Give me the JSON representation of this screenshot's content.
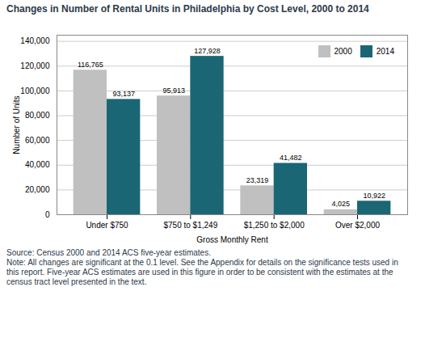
{
  "chart_data": {
    "type": "bar",
    "title": "Changes in Number of Rental Units in Philadelphia by Cost Level, 2000 to 2014",
    "categories": [
      "Under $750",
      "$750 to $1,249",
      "$1,250 to $2,000",
      "Over $2,000"
    ],
    "series": [
      {
        "name": "2000",
        "color": "#c0c0c0",
        "values": [
          116765,
          95913,
          23319,
          4025
        ],
        "value_labels": [
          "116,765",
          "95,913",
          "23,319",
          "4,025"
        ]
      },
      {
        "name": "2014",
        "color": "#1a6674",
        "values": [
          93137,
          127928,
          41482,
          10922
        ],
        "value_labels": [
          "93,137",
          "127,928",
          "41,482",
          "10,922"
        ]
      }
    ],
    "xlabel": "Gross Monthly Rent",
    "ylabel": "Number of Units",
    "ylim": [
      0,
      145000
    ],
    "yticks": [
      0,
      {
        "value": 20000,
        "label": "20,000"
      },
      {
        "value": 40000,
        "label": "40,000"
      },
      {
        "value": 60000,
        "label": "60,000"
      },
      {
        "value": 80000,
        "label": "80,000"
      },
      {
        "value": 100000,
        "label": "100,000"
      },
      {
        "value": 120000,
        "label": "120,000"
      },
      {
        "value": 140000,
        "label": "140,000"
      }
    ],
    "grid": true,
    "legend": "upper right",
    "data_labels": true,
    "annotations": [
      "Source: Census 2000 and 2014 ACS five-year estimates.",
      "Note: All changes are significant at the 0.1 level. See the Appendix for details on the significance tests used in",
      "this report. Five-year ACS estimates are used in this figure in order to be consistent with the estimates at the",
      "census tract level presented in the text."
    ]
  }
}
